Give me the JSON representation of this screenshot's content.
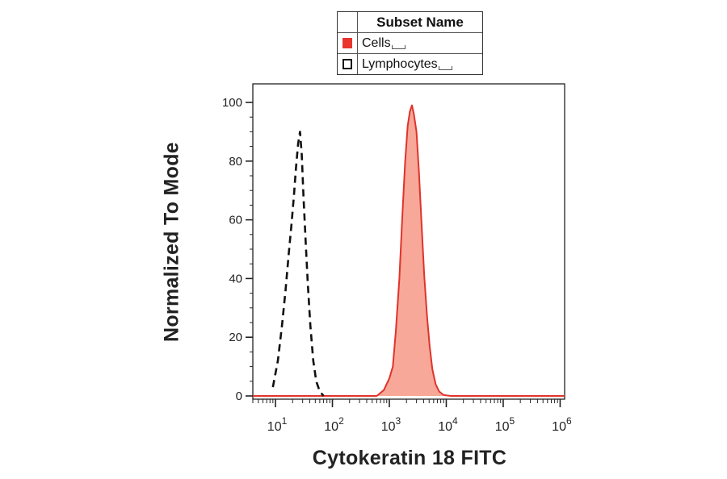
{
  "legend": {
    "title": "Subset Name",
    "items": [
      {
        "label": "Cells",
        "color": "#e8352e",
        "style": "filled"
      },
      {
        "label": "Lymphocytes",
        "color": "#111111",
        "style": "outline"
      }
    ]
  },
  "chart_data": {
    "type": "area",
    "xlabel": "Cytokeratin 18 FITC",
    "ylabel": "Normalized To Mode",
    "x_scale": "log",
    "xlim": [
      4,
      1200000
    ],
    "ylim": [
      0,
      100
    ],
    "yticks": [
      "0",
      "20",
      "40",
      "60",
      "80",
      "100"
    ],
    "xticks": [
      {
        "base": "10",
        "exp": "1",
        "value": 10
      },
      {
        "base": "10",
        "exp": "2",
        "value": 100
      },
      {
        "base": "10",
        "exp": "3",
        "value": 1000
      },
      {
        "base": "10",
        "exp": "4",
        "value": 10000
      },
      {
        "base": "10",
        "exp": "5",
        "value": 100000
      },
      {
        "base": "10",
        "exp": "6",
        "value": 1000000
      }
    ],
    "grid": false,
    "legend_position": "top",
    "series": [
      {
        "name": "Cells",
        "fill": "#f7a898",
        "stroke": "#e0332c",
        "dashed": false,
        "x": [
          4,
          100,
          600,
          800,
          1000,
          1150,
          1300,
          1500,
          1700,
          1900,
          2100,
          2300,
          2500,
          2700,
          3000,
          3300,
          3700,
          4100,
          4600,
          5100,
          5700,
          6500,
          7500,
          9000,
          12000,
          30000,
          100000,
          500000,
          1200000
        ],
        "y": [
          0,
          0,
          0,
          2,
          6,
          10,
          22,
          40,
          62,
          80,
          92,
          97,
          99,
          96,
          90,
          77,
          58,
          41,
          27,
          17,
          9,
          4,
          1.5,
          0.3,
          0,
          0,
          0,
          0,
          0
        ]
      },
      {
        "name": "Lymphocytes",
        "stroke": "#111111",
        "dashed": true,
        "x": [
          9,
          11,
          13,
          15,
          17,
          19,
          21,
          23,
          25,
          27,
          29,
          31,
          34,
          37,
          41,
          46,
          52,
          60,
          70
        ],
        "y": [
          3,
          12,
          24,
          36,
          48,
          58,
          68,
          78,
          86,
          90,
          82,
          68,
          52,
          38,
          24,
          12,
          5,
          1.5,
          0
        ]
      }
    ]
  }
}
